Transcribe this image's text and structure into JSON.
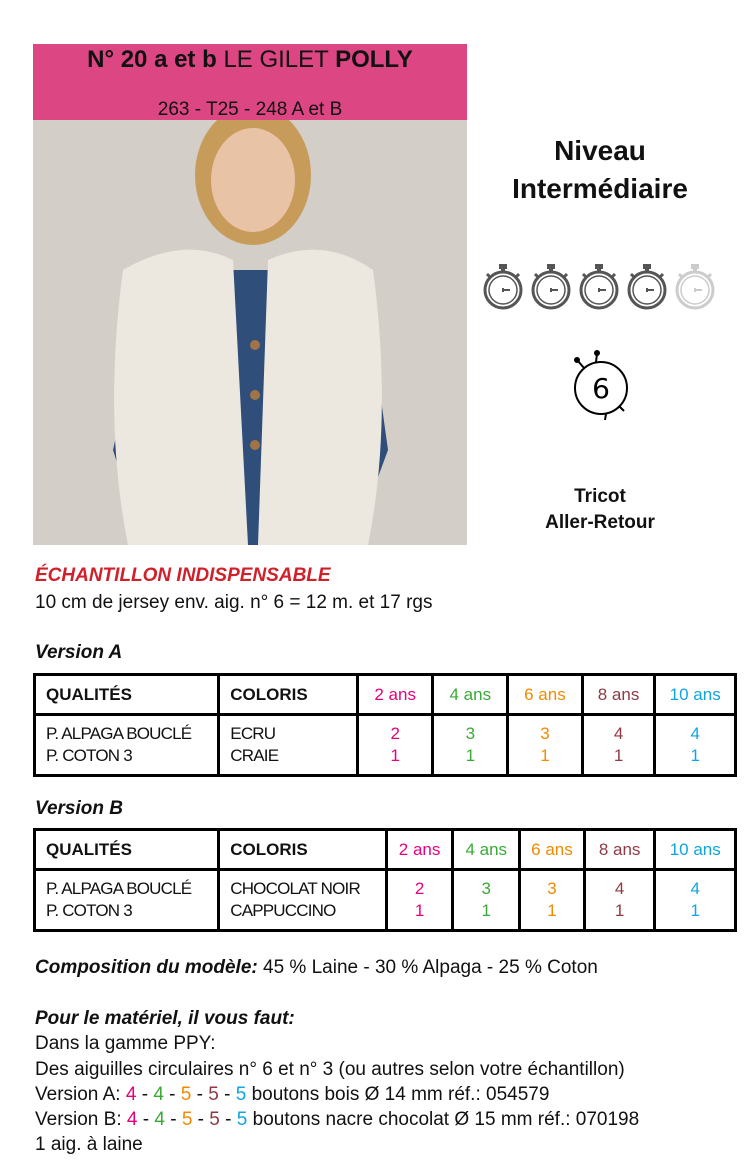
{
  "header": {
    "title_bold": "N° 20 a et b",
    "title_regular": "LE GILET",
    "title_name": "POLLY",
    "subtitle": "263 - T25 - 248 A et B",
    "color": "#dc4783"
  },
  "level": {
    "line1": "Niveau",
    "line2": "Intermédiaire",
    "difficulty": 4,
    "difficulty_max": 5,
    "icon": "stopwatch-icon"
  },
  "needle": {
    "size": "6",
    "icon": "knitting-needle-size-icon"
  },
  "technique": {
    "line1": "Tricot",
    "line2": "Aller-Retour"
  },
  "gauge": {
    "title": "ÉCHANTILLON INDISPENSABLE",
    "text": "10 cm de jersey env. aig. n° 6 = 12 m. et 17 rgs"
  },
  "size_colors": [
    "#e5007e",
    "#3aa935",
    "#f08a00",
    "#8e3a46",
    "#0ea5e0"
  ],
  "versions": [
    {
      "label": "Version A",
      "headers": [
        "QUALITÉS",
        "COLORIS",
        "2 ans",
        "4 ans",
        "6 ans",
        "8 ans",
        "10 ans"
      ],
      "qualities": [
        "P. ALPAGA BOUCLÉ",
        "P. COTON 3"
      ],
      "colors": [
        "ECRU",
        "CRAIE"
      ],
      "quantities": [
        [
          "2",
          "1"
        ],
        [
          "3",
          "1"
        ],
        [
          "3",
          "1"
        ],
        [
          "4",
          "1"
        ],
        [
          "4",
          "1"
        ]
      ]
    },
    {
      "label": "Version B",
      "headers": [
        "QUALITÉS",
        "COLORIS",
        "2 ans",
        "4 ans",
        "6 ans",
        "8 ans",
        "10 ans"
      ],
      "qualities": [
        "P. ALPAGA BOUCLÉ",
        "P. COTON 3"
      ],
      "colors": [
        "CHOCOLAT NOIR",
        "CAPPUCCINO"
      ],
      "quantities": [
        [
          "2",
          "1"
        ],
        [
          "3",
          "1"
        ],
        [
          "3",
          "1"
        ],
        [
          "4",
          "1"
        ],
        [
          "4",
          "1"
        ]
      ]
    }
  ],
  "composition": {
    "label": "Composition du modèle:",
    "text": " 45 % Laine - 30 % Alpaga - 25 % Coton"
  },
  "material": {
    "label": "Pour le matériel, il vous faut:",
    "line1": "Dans la gamme PPY:",
    "line2": "Des aiguilles circulaires n° 6 et n° 3 (ou autres selon votre échantillon)",
    "buttons": [
      {
        "prefix": "Version A: ",
        "counts": [
          "4",
          "4",
          "5",
          "5",
          "5"
        ],
        "suffix": " boutons bois Ø 14 mm réf.: 054579"
      },
      {
        "prefix": "Version B: ",
        "counts": [
          "4",
          "4",
          "5",
          "5",
          "5"
        ],
        "suffix": " boutons nacre chocolat Ø 15 mm réf.: 070198"
      }
    ],
    "line_last": "1 aig. à laine"
  }
}
